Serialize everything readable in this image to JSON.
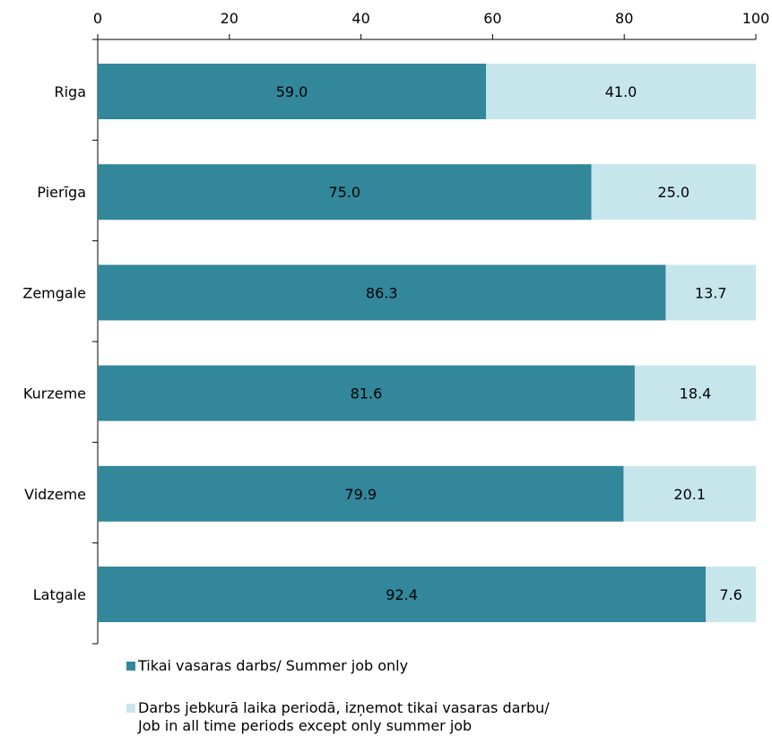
{
  "chart_data": {
    "type": "bar",
    "orientation": "horizontal",
    "stacked": true,
    "categories": [
      "Riga",
      "Pierīga",
      "Zemgale",
      "Kurzeme",
      "Vidzeme",
      "Latgale"
    ],
    "series": [
      {
        "name": "Tikai vasaras darbs/ Summer job only",
        "values": [
          59.0,
          75.0,
          86.3,
          81.6,
          79.9,
          92.4
        ],
        "color": "#32879b"
      },
      {
        "name": "Darbs jebkurā laika periodā, izņemot tikai vasaras darbu/\nJob in all time periods except only summer job",
        "values": [
          41.0,
          25.0,
          13.7,
          18.4,
          20.1,
          7.6
        ],
        "color": "#c7e6ec"
      }
    ],
    "xlim": [
      0,
      100
    ],
    "xticks": [
      "0",
      "20",
      "40",
      "60",
      "80",
      "100"
    ],
    "axis_position": "top",
    "grid": false,
    "legend_position": "bottom",
    "title": "",
    "xlabel": "",
    "ylabel": ""
  }
}
